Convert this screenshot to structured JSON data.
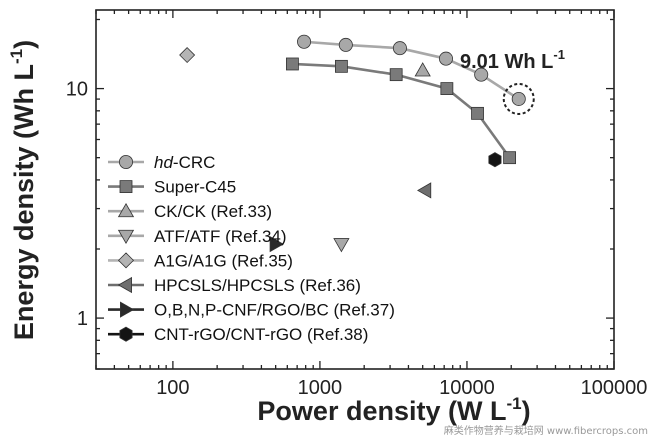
{
  "chart_data": {
    "type": "scatter",
    "xscale": "log",
    "yscale": "log",
    "xlim": [
      30,
      100000
    ],
    "ylim": [
      0.6,
      22
    ],
    "xlabel": "Power density (W L",
    "xlabel_sup": "-1",
    "xlabel_end": ")",
    "ylabel": "Energy density (Wh L",
    "ylabel_sup": "-1",
    "ylabel_end": ")",
    "x_ticks": [
      {
        "value": 100,
        "label": "100"
      },
      {
        "value": 1000,
        "label": "1000"
      },
      {
        "value": 10000,
        "label": "10000"
      },
      {
        "value": 100000,
        "label": "100000"
      }
    ],
    "y_ticks": [
      {
        "value": 1,
        "label": "1"
      },
      {
        "value": 10,
        "label": "10"
      }
    ],
    "annotation": {
      "text": "9.01 Wh L",
      "sup": "-1",
      "x": 22500,
      "y": 9.01
    },
    "series": [
      {
        "name": "hd-CRC",
        "name_prefix": "hd",
        "name_rest": "-CRC",
        "marker": "circle",
        "color": "#a8a8a8",
        "connected": true,
        "x": [
          780,
          1500,
          3500,
          7200,
          12500,
          22500
        ],
        "y": [
          16,
          15.5,
          15,
          13.5,
          11.5,
          9.01
        ]
      },
      {
        "name": "Super-C45",
        "marker": "square",
        "color": "#7a7a7a",
        "connected": true,
        "x": [
          650,
          1400,
          3300,
          7300,
          11800,
          19500
        ],
        "y": [
          12.8,
          12.5,
          11.5,
          10,
          7.8,
          5
        ]
      },
      {
        "name": "CK/CK (Ref.33)",
        "marker": "triangle-up",
        "color": "#a8a8a8",
        "connected": false,
        "x": [
          5000
        ],
        "y": [
          12
        ]
      },
      {
        "name": "ATF/ATF (Ref.34)",
        "marker": "triangle-down",
        "color": "#a8a8a8",
        "connected": false,
        "x": [
          1400
        ],
        "y": [
          2.1
        ]
      },
      {
        "name": "A1G/A1G (Ref.35)",
        "marker": "diamond",
        "color": "#b4b4b4",
        "connected": false,
        "x": [
          125
        ],
        "y": [
          14
        ]
      },
      {
        "name": "HPCSLS/HPCSLS (Ref.36)",
        "marker": "triangle-left",
        "color": "#6e6e6e",
        "connected": false,
        "x": [
          5200
        ],
        "y": [
          3.6
        ]
      },
      {
        "name": "O,B,N,P-CNF/RGO/BC (Ref.37)",
        "marker": "triangle-right",
        "color": "#2a2a2a",
        "connected": false,
        "x": [
          500
        ],
        "y": [
          2.1
        ]
      },
      {
        "name": "CNT-rGO/CNT-rGO (Ref.38)",
        "marker": "hexagon",
        "color": "#141414",
        "connected": false,
        "x": [
          15500
        ],
        "y": [
          4.9
        ]
      }
    ]
  },
  "watermark": "麻类作物营养与栽培网 www.fibercrops.com"
}
